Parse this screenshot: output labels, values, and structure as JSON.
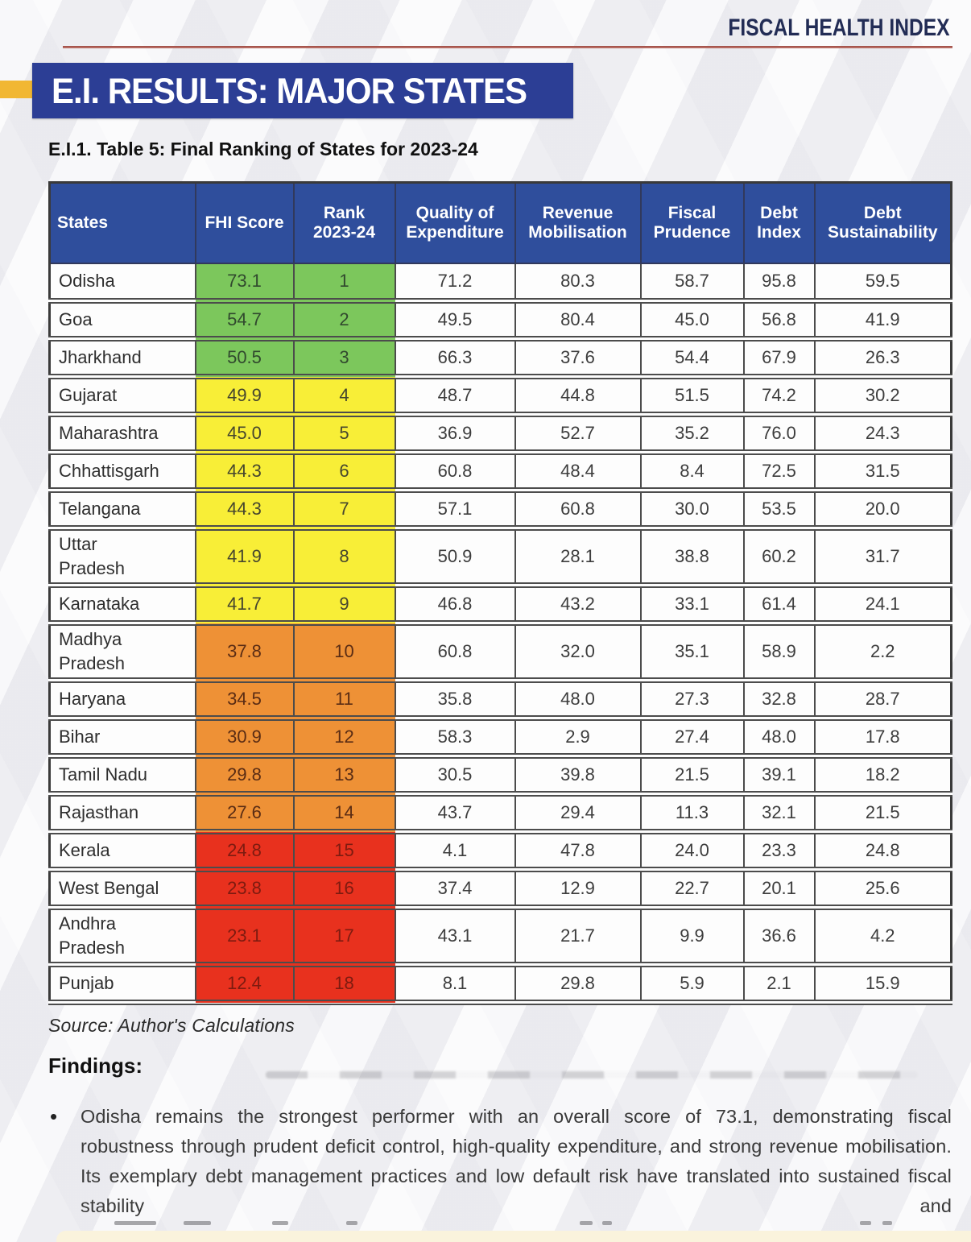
{
  "page": {
    "brand": "FISCAL HEALTH INDEX",
    "title": "E.I. RESULTS: MAJOR STATES",
    "table_caption": "E.I.1. Table 5: Final Ranking of States for 2023-24",
    "source": "Source: Author's Calculations",
    "findings_heading": "Findings:",
    "bullet_marker": "•",
    "finding_bullet": "Odisha remains the strongest performer with an overall score of 73.1, demonstrating fiscal robustness through prudent deficit control, high-quality expenditure, and strong revenue mobilisation. Its exemplary debt management practices and low default risk have translated into sustained fiscal stability and"
  },
  "table": {
    "columns": [
      "States",
      "FHI Score",
      "Rank\n2023-24",
      "Quality of\nExpenditure",
      "Revenue\nMobilisation",
      "Fiscal\nPrudence",
      "Debt\nIndex",
      "Debt\nSustainability"
    ],
    "rows": [
      {
        "state": "Odisha",
        "fhi": "73.1",
        "rank": "1",
        "qoe": "71.2",
        "rm": "80.3",
        "fp": "58.7",
        "di": "95.8",
        "ds": "59.5",
        "tier": "green"
      },
      {
        "state": "Goa",
        "fhi": "54.7",
        "rank": "2",
        "qoe": "49.5",
        "rm": "80.4",
        "fp": "45.0",
        "di": "56.8",
        "ds": "41.9",
        "tier": "green"
      },
      {
        "state": "Jharkhand",
        "fhi": "50.5",
        "rank": "3",
        "qoe": "66.3",
        "rm": "37.6",
        "fp": "54.4",
        "di": "67.9",
        "ds": "26.3",
        "tier": "green"
      },
      {
        "state": "Gujarat",
        "fhi": "49.9",
        "rank": "4",
        "qoe": "48.7",
        "rm": "44.8",
        "fp": "51.5",
        "di": "74.2",
        "ds": "30.2",
        "tier": "yellow"
      },
      {
        "state": "Maharashtra",
        "fhi": "45.0",
        "rank": "5",
        "qoe": "36.9",
        "rm": "52.7",
        "fp": "35.2",
        "di": "76.0",
        "ds": "24.3",
        "tier": "yellow"
      },
      {
        "state": "Chhattisgarh",
        "fhi": "44.3",
        "rank": "6",
        "qoe": "60.8",
        "rm": "48.4",
        "fp": "8.4",
        "di": "72.5",
        "ds": "31.5",
        "tier": "yellow"
      },
      {
        "state": "Telangana",
        "fhi": "44.3",
        "rank": "7",
        "qoe": "57.1",
        "rm": "60.8",
        "fp": "30.0",
        "di": "53.5",
        "ds": "20.0",
        "tier": "yellow"
      },
      {
        "state": "Uttar\nPradesh",
        "fhi": "41.9",
        "rank": "8",
        "qoe": "50.9",
        "rm": "28.1",
        "fp": "38.8",
        "di": "60.2",
        "ds": "31.7",
        "tier": "yellow"
      },
      {
        "state": "Karnataka",
        "fhi": "41.7",
        "rank": "9",
        "qoe": "46.8",
        "rm": "43.2",
        "fp": "33.1",
        "di": "61.4",
        "ds": "24.1",
        "tier": "yellow"
      },
      {
        "state": "Madhya\nPradesh",
        "fhi": "37.8",
        "rank": "10",
        "qoe": "60.8",
        "rm": "32.0",
        "fp": "35.1",
        "di": "58.9",
        "ds": "2.2",
        "tier": "orange"
      },
      {
        "state": "Haryana",
        "fhi": "34.5",
        "rank": "11",
        "qoe": "35.8",
        "rm": "48.0",
        "fp": "27.3",
        "di": "32.8",
        "ds": "28.7",
        "tier": "orange"
      },
      {
        "state": "Bihar",
        "fhi": "30.9",
        "rank": "12",
        "qoe": "58.3",
        "rm": "2.9",
        "fp": "27.4",
        "di": "48.0",
        "ds": "17.8",
        "tier": "orange"
      },
      {
        "state": "Tamil Nadu",
        "fhi": "29.8",
        "rank": "13",
        "qoe": "30.5",
        "rm": "39.8",
        "fp": "21.5",
        "di": "39.1",
        "ds": "18.2",
        "tier": "orange"
      },
      {
        "state": "Rajasthan",
        "fhi": "27.6",
        "rank": "14",
        "qoe": "43.7",
        "rm": "29.4",
        "fp": "11.3",
        "di": "32.1",
        "ds": "21.5",
        "tier": "orange"
      },
      {
        "state": "Kerala",
        "fhi": "24.8",
        "rank": "15",
        "qoe": "4.1",
        "rm": "47.8",
        "fp": "24.0",
        "di": "23.3",
        "ds": "24.8",
        "tier": "red"
      },
      {
        "state": "West Bengal",
        "fhi": "23.8",
        "rank": "16",
        "qoe": "37.4",
        "rm": "12.9",
        "fp": "22.7",
        "di": "20.1",
        "ds": "25.6",
        "tier": "red"
      },
      {
        "state": "Andhra\nPradesh",
        "fhi": "23.1",
        "rank": "17",
        "qoe": "43.1",
        "rm": "21.7",
        "fp": "9.9",
        "di": "36.6",
        "ds": "4.2",
        "tier": "red"
      },
      {
        "state": "Punjab",
        "fhi": "12.4",
        "rank": "18",
        "qoe": "8.1",
        "rm": "29.8",
        "fp": "5.9",
        "di": "2.1",
        "ds": "15.9",
        "tier": "red"
      }
    ]
  },
  "colors": {
    "title_banner_blue": "#2c3e95",
    "header_blue": "#2f4e9c",
    "brand_navy": "#222c55",
    "rule_red": "#9d4a42",
    "accent_yellow": "#f1b733",
    "tier_green": "#7cc75c",
    "tier_yellow": "#f8ee37",
    "tier_orange": "#ee9136",
    "tier_red": "#e8311e",
    "highlight_cream": "#faf3dc"
  }
}
